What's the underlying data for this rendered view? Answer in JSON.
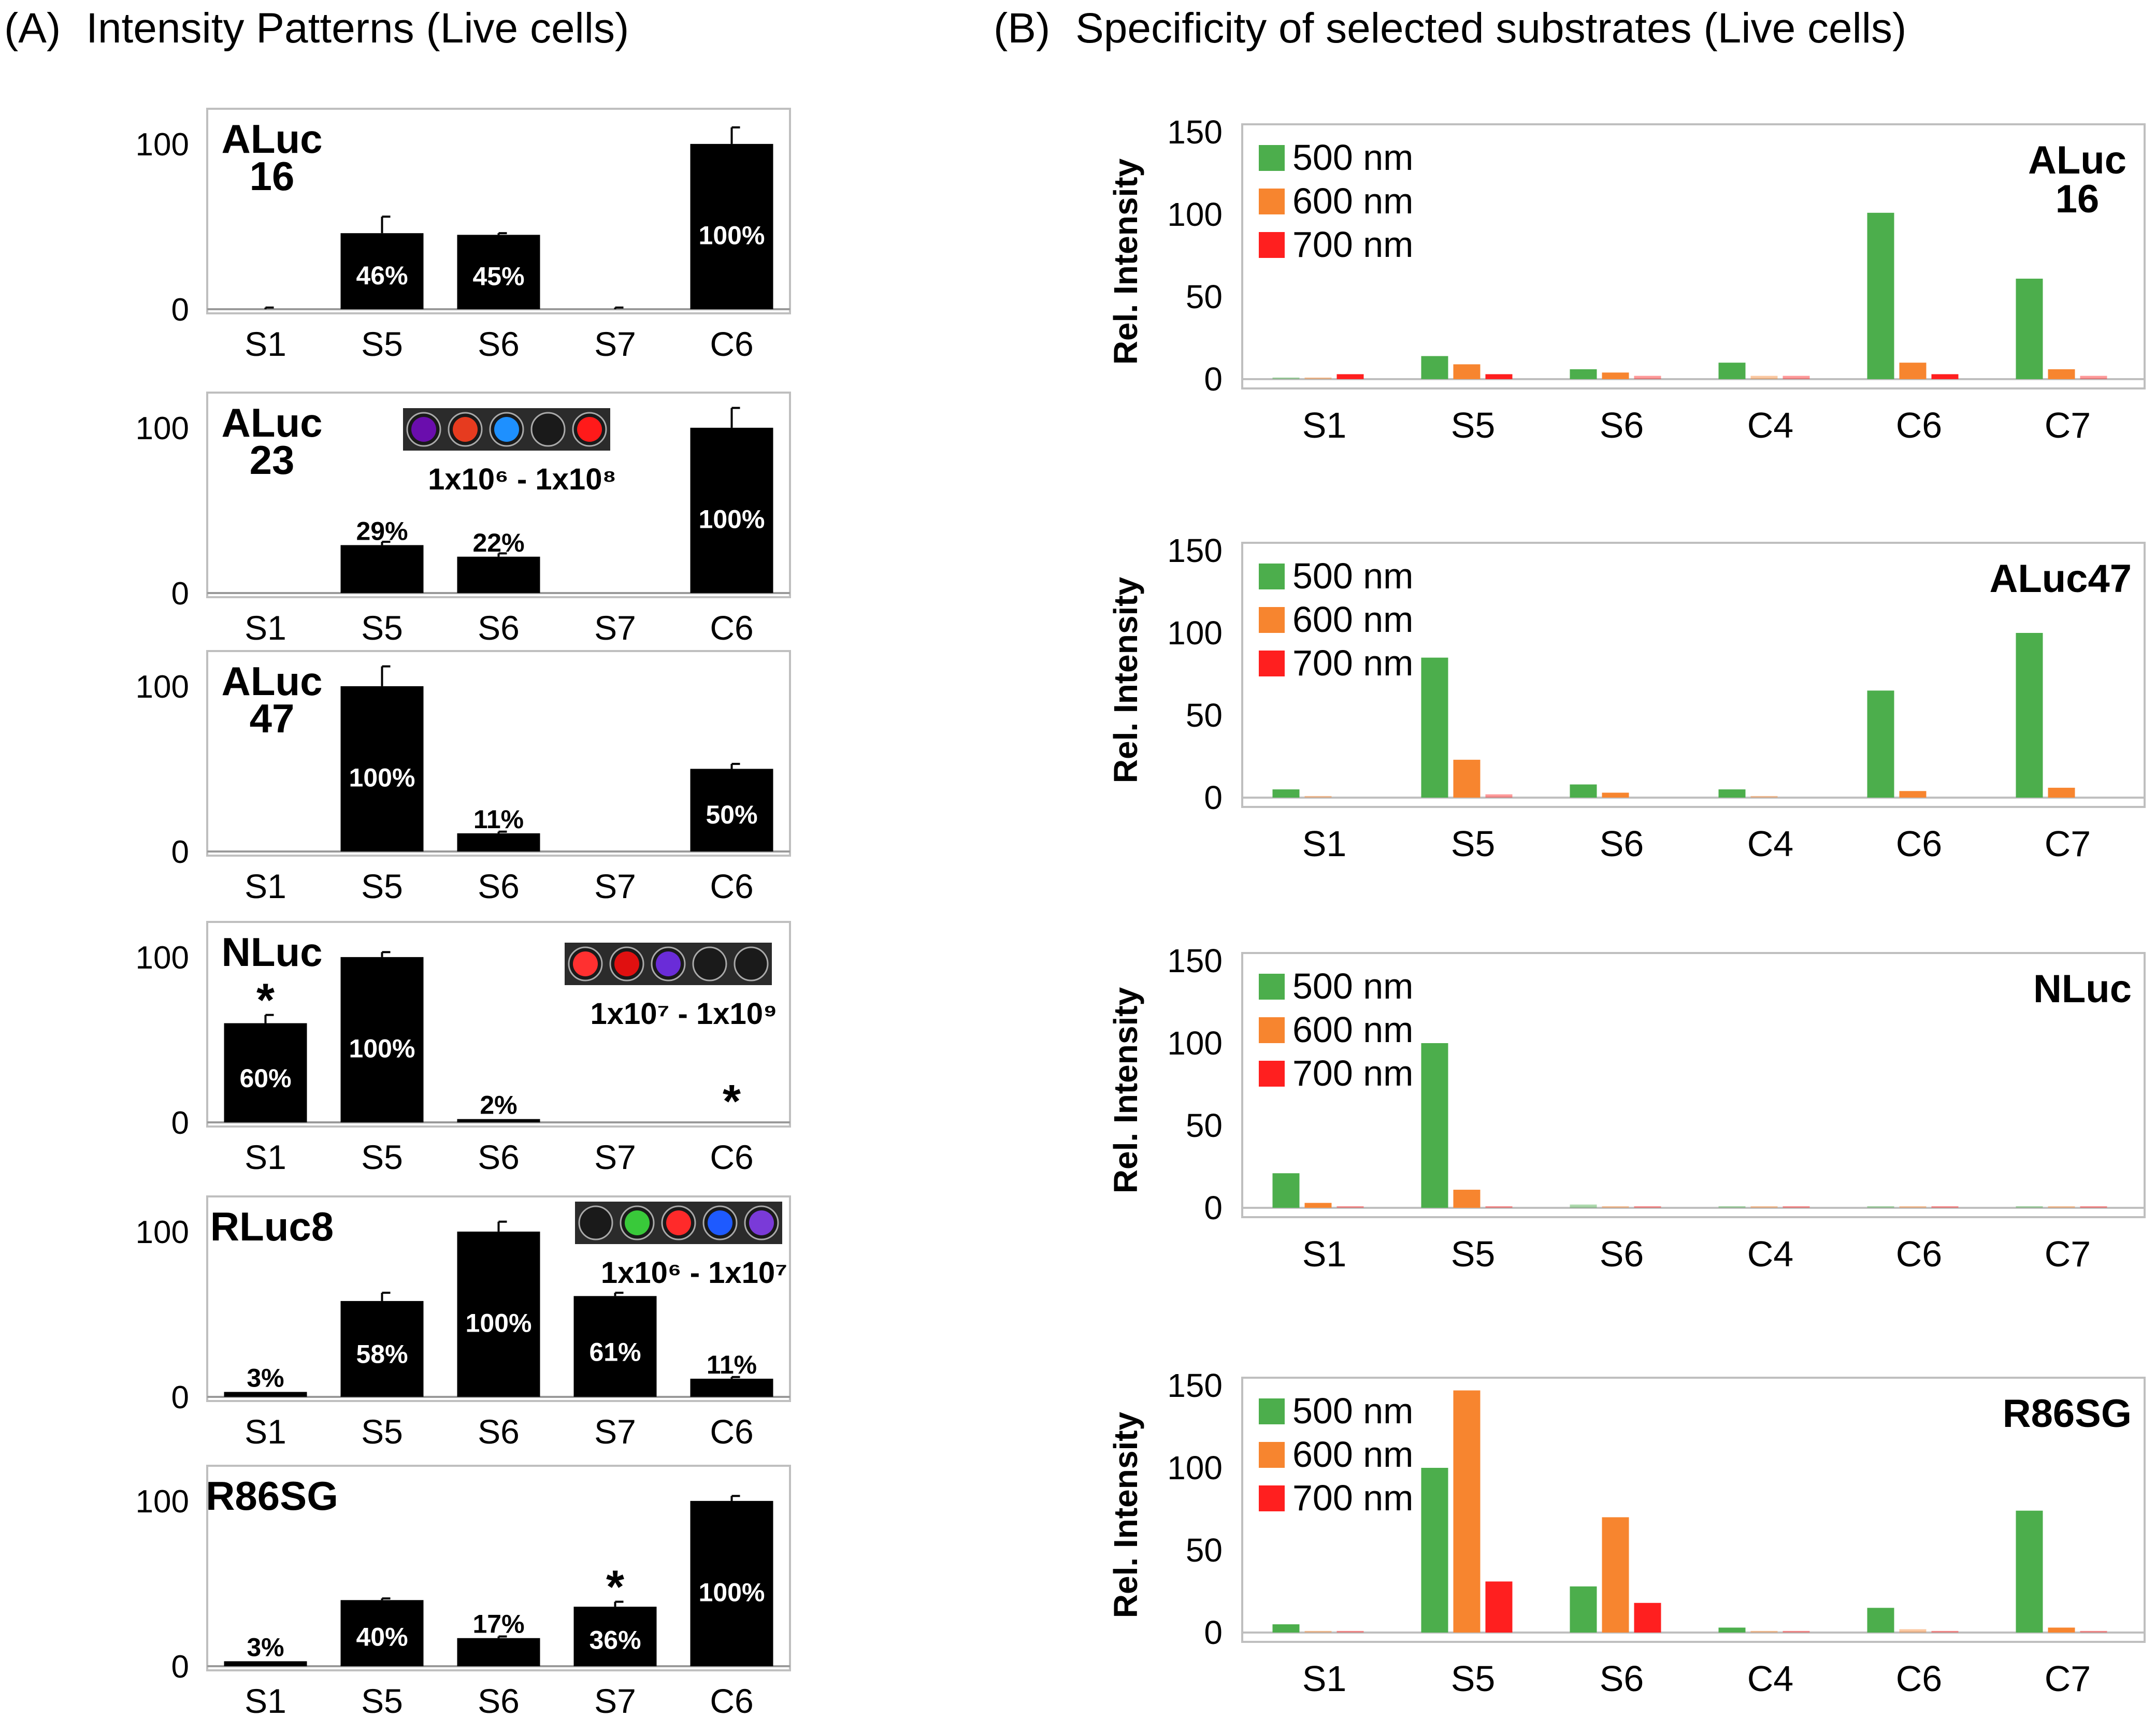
{
  "panel_a": {
    "label": "(A)",
    "title": "Intensity Patterns (Live cells)"
  },
  "panel_b": {
    "label": "(B)",
    "title": "Specificity of selected substrates (Live cells)"
  },
  "chart_data": [
    {
      "panel": "A",
      "type": "bar",
      "title": "ALuc 16",
      "title_lines": [
        "ALuc",
        "16"
      ],
      "categories": [
        "S1",
        "S5",
        "S6",
        "S7",
        "C6"
      ],
      "values": [
        0,
        46,
        45,
        0,
        100
      ],
      "errors": [
        1,
        10,
        1,
        1,
        10
      ],
      "data_labels": [
        "",
        "46%",
        "45%",
        "",
        "100%"
      ],
      "yticks": [
        0,
        100
      ],
      "ylim": [
        0,
        115
      ]
    },
    {
      "panel": "A",
      "type": "bar",
      "title": "ALuc 23",
      "title_lines": [
        "ALuc",
        "23"
      ],
      "categories": [
        "S1",
        "S5",
        "S6",
        "S7",
        "C6"
      ],
      "values": [
        0,
        29,
        22,
        0,
        100
      ],
      "errors": [
        0,
        2,
        2,
        0,
        12
      ],
      "data_labels": [
        "",
        "29%",
        "22%",
        "",
        "100%"
      ],
      "yticks": [
        0,
        100
      ],
      "ylim": [
        0,
        115
      ],
      "well_image": {
        "wells": [
          "#6a0dad",
          "#e63b1f",
          "#1e90ff",
          "#555555",
          "#ff1a1a"
        ],
        "caption": "1x10⁶ - 1x10⁸"
      }
    },
    {
      "panel": "A",
      "type": "bar",
      "title": "ALuc 47",
      "title_lines": [
        "ALuc",
        "47"
      ],
      "categories": [
        "S1",
        "S5",
        "S6",
        "S7",
        "C6"
      ],
      "values": [
        0,
        100,
        11,
        0,
        50
      ],
      "errors": [
        0,
        12,
        1,
        0,
        3
      ],
      "data_labels": [
        "",
        "100%",
        "11%",
        "",
        "50%"
      ],
      "yticks": [
        0,
        100
      ],
      "ylim": [
        0,
        115
      ]
    },
    {
      "panel": "A",
      "type": "bar",
      "title": "NLuc",
      "title_lines": [
        "NLuc"
      ],
      "categories": [
        "S1",
        "S5",
        "S6",
        "S7",
        "C6"
      ],
      "values": [
        60,
        100,
        2,
        0,
        0
      ],
      "errors": [
        5,
        3,
        0,
        0,
        0
      ],
      "data_labels": [
        "60%",
        "100%",
        "2%",
        "",
        ""
      ],
      "stars": [
        "S1",
        "C6"
      ],
      "yticks": [
        0,
        100
      ],
      "ylim": [
        0,
        115
      ],
      "well_image": {
        "wells": [
          "#ff3030",
          "#e01010",
          "#6a2cd8",
          "#555555",
          "#555555"
        ],
        "caption": "1x10⁷ - 1x10⁹"
      }
    },
    {
      "panel": "A",
      "type": "bar",
      "title": "RLuc8",
      "title_lines": [
        "RLuc8"
      ],
      "categories": [
        "S1",
        "S5",
        "S6",
        "S7",
        "C6"
      ],
      "values": [
        3,
        58,
        100,
        61,
        11
      ],
      "errors": [
        0,
        5,
        6,
        2,
        1
      ],
      "data_labels": [
        "3%",
        "58%",
        "100%",
        "61%",
        "11%"
      ],
      "yticks": [
        0,
        100
      ],
      "ylim": [
        0,
        115
      ],
      "well_image": {
        "wells": [
          "#555555",
          "#39c93a",
          "#ff2a2a",
          "#1e5aff",
          "#7a3ad8"
        ],
        "caption": "1x10⁶ - 1x10⁷"
      }
    },
    {
      "panel": "A",
      "type": "bar",
      "title": "R86SG",
      "title_lines": [
        "R86SG"
      ],
      "categories": [
        "S1",
        "S5",
        "S6",
        "S7",
        "C6"
      ],
      "values": [
        3,
        40,
        17,
        36,
        100
      ],
      "errors": [
        0,
        1,
        1,
        3,
        3
      ],
      "data_labels": [
        "3%",
        "40%",
        "17%",
        "36%",
        "100%"
      ],
      "stars": [
        "S7"
      ],
      "yticks": [
        0,
        100
      ],
      "ylim": [
        0,
        115
      ]
    },
    {
      "panel": "B",
      "type": "bar",
      "title": "ALuc 16",
      "title_lines": [
        "ALuc",
        "16"
      ],
      "ylabel": "Rel. Intensity",
      "categories": [
        "S1",
        "S5",
        "S6",
        "C4",
        "C6",
        "C7"
      ],
      "series": [
        {
          "name": "500 nm",
          "color": "#4cae4c",
          "values": [
            1,
            14,
            6,
            10,
            101,
            61
          ]
        },
        {
          "name": "600 nm",
          "color": "#f7852f",
          "values": [
            1,
            9,
            4,
            2,
            10,
            6
          ]
        },
        {
          "name": "700 nm",
          "color": "#ff1f1f",
          "values": [
            3,
            3,
            2,
            2,
            3,
            2
          ]
        }
      ],
      "yticks": [
        0,
        50,
        100,
        150
      ],
      "ylim": [
        0,
        150
      ]
    },
    {
      "panel": "B",
      "type": "bar",
      "title": "ALuc47",
      "title_lines": [
        "ALuc47"
      ],
      "ylabel": "Rel. Intensity",
      "categories": [
        "S1",
        "S5",
        "S6",
        "C4",
        "C6",
        "C7"
      ],
      "series": [
        {
          "name": "500 nm",
          "color": "#4cae4c",
          "values": [
            5,
            85,
            8,
            5,
            65,
            100
          ]
        },
        {
          "name": "600 nm",
          "color": "#f7852f",
          "values": [
            1,
            23,
            3,
            1,
            4,
            6
          ]
        },
        {
          "name": "700 nm",
          "color": "#ff1f1f",
          "values": [
            0,
            2,
            0,
            0,
            0,
            0
          ]
        }
      ],
      "yticks": [
        0,
        50,
        100,
        150
      ],
      "ylim": [
        0,
        150
      ]
    },
    {
      "panel": "B",
      "type": "bar",
      "title": "NLuc",
      "title_lines": [
        "NLuc"
      ],
      "ylabel": "Rel. Intensity",
      "categories": [
        "S1",
        "S5",
        "S6",
        "C4",
        "C6",
        "C7"
      ],
      "series": [
        {
          "name": "500 nm",
          "color": "#4cae4c",
          "values": [
            21,
            100,
            2,
            1,
            1,
            1
          ]
        },
        {
          "name": "600 nm",
          "color": "#f7852f",
          "values": [
            3,
            11,
            1,
            1,
            1,
            1
          ]
        },
        {
          "name": "700 nm",
          "color": "#ff1f1f",
          "values": [
            1,
            1,
            1,
            1,
            1,
            1
          ]
        }
      ],
      "yticks": [
        0,
        50,
        100,
        150
      ],
      "ylim": [
        0,
        150
      ]
    },
    {
      "panel": "B",
      "type": "bar",
      "title": "R86SG",
      "title_lines": [
        "R86SG"
      ],
      "ylabel": "Rel. Intensity",
      "categories": [
        "S1",
        "S5",
        "S6",
        "C4",
        "C6",
        "C7"
      ],
      "series": [
        {
          "name": "500 nm",
          "color": "#4cae4c",
          "values": [
            5,
            100,
            28,
            3,
            15,
            74
          ]
        },
        {
          "name": "600 nm",
          "color": "#f7852f",
          "values": [
            1,
            147,
            70,
            1,
            2,
            3
          ]
        },
        {
          "name": "700 nm",
          "color": "#ff1f1f",
          "values": [
            1,
            31,
            18,
            1,
            1,
            1
          ]
        }
      ],
      "yticks": [
        0,
        50,
        100,
        150
      ],
      "ylim": [
        0,
        150
      ]
    }
  ]
}
